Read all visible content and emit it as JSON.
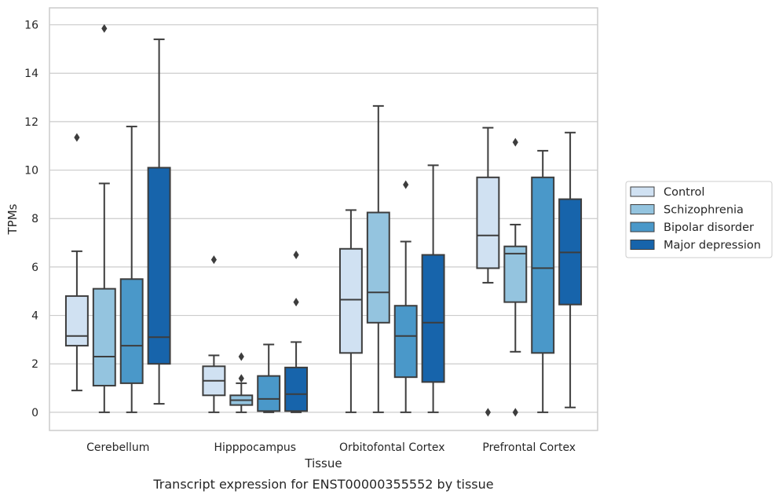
{
  "chart_data": {
    "type": "boxplot",
    "title": "Transcript expression for ENST00000355552 by tissue",
    "xlabel": "Tissue",
    "ylabel": "TPMs",
    "ylim": [
      -0.75,
      16.7
    ],
    "yticks": [
      0,
      2,
      4,
      6,
      8,
      10,
      12,
      14,
      16
    ],
    "grid": true,
    "legend_position": "right",
    "categories": [
      "Cerebellum",
      "Hipppocampus",
      "Orbitofontal Cortex",
      "Prefrontal Cortex"
    ],
    "series": [
      {
        "name": "Control",
        "color": "#d0e1f2",
        "boxes": [
          {
            "whislo": 0.9,
            "q1": 2.75,
            "med": 3.15,
            "q3": 4.8,
            "whishi": 6.65,
            "fliers": [
              11.35
            ]
          },
          {
            "whislo": 0.0,
            "q1": 0.7,
            "med": 1.3,
            "q3": 1.9,
            "whishi": 2.35,
            "fliers": [
              6.3
            ]
          },
          {
            "whislo": 0.0,
            "q1": 2.45,
            "med": 4.65,
            "q3": 6.75,
            "whishi": 8.35,
            "fliers": []
          },
          {
            "whislo": 5.35,
            "q1": 5.95,
            "med": 7.3,
            "q3": 9.7,
            "whishi": 11.75,
            "fliers": [
              0.0
            ]
          }
        ]
      },
      {
        "name": "Schizophrenia",
        "color": "#94c4df",
        "boxes": [
          {
            "whislo": 0.0,
            "q1": 1.1,
            "med": 2.3,
            "q3": 5.1,
            "whishi": 9.45,
            "fliers": [
              15.85
            ]
          },
          {
            "whislo": 0.0,
            "q1": 0.3,
            "med": 0.5,
            "q3": 0.7,
            "whishi": 1.2,
            "fliers": [
              1.4,
              2.3
            ]
          },
          {
            "whislo": 0.0,
            "q1": 3.7,
            "med": 4.95,
            "q3": 8.25,
            "whishi": 12.65,
            "fliers": []
          },
          {
            "whislo": 2.5,
            "q1": 4.55,
            "med": 6.55,
            "q3": 6.85,
            "whishi": 7.75,
            "fliers": [
              11.15,
              0.0
            ]
          }
        ]
      },
      {
        "name": "Bipolar disorder",
        "color": "#4a98c9",
        "boxes": [
          {
            "whislo": 0.0,
            "q1": 1.2,
            "med": 2.75,
            "q3": 5.5,
            "whishi": 11.8,
            "fliers": []
          },
          {
            "whislo": 0.0,
            "q1": 0.05,
            "med": 0.55,
            "q3": 1.5,
            "whishi": 2.8,
            "fliers": []
          },
          {
            "whislo": 0.0,
            "q1": 1.45,
            "med": 3.15,
            "q3": 4.4,
            "whishi": 7.05,
            "fliers": [
              9.4
            ]
          },
          {
            "whislo": 0.0,
            "q1": 2.45,
            "med": 5.95,
            "q3": 9.7,
            "whishi": 10.8,
            "fliers": []
          }
        ]
      },
      {
        "name": "Major depression",
        "color": "#1764ab",
        "boxes": [
          {
            "whislo": 0.35,
            "q1": 2.0,
            "med": 3.1,
            "q3": 10.1,
            "whishi": 15.4,
            "fliers": []
          },
          {
            "whislo": 0.0,
            "q1": 0.05,
            "med": 0.75,
            "q3": 1.85,
            "whishi": 2.9,
            "fliers": [
              4.55,
              6.5
            ]
          },
          {
            "whislo": 0.0,
            "q1": 1.25,
            "med": 3.7,
            "q3": 6.5,
            "whishi": 10.2,
            "fliers": []
          },
          {
            "whislo": 0.2,
            "q1": 4.45,
            "med": 6.6,
            "q3": 8.8,
            "whishi": 11.55,
            "fliers": []
          }
        ]
      }
    ]
  }
}
